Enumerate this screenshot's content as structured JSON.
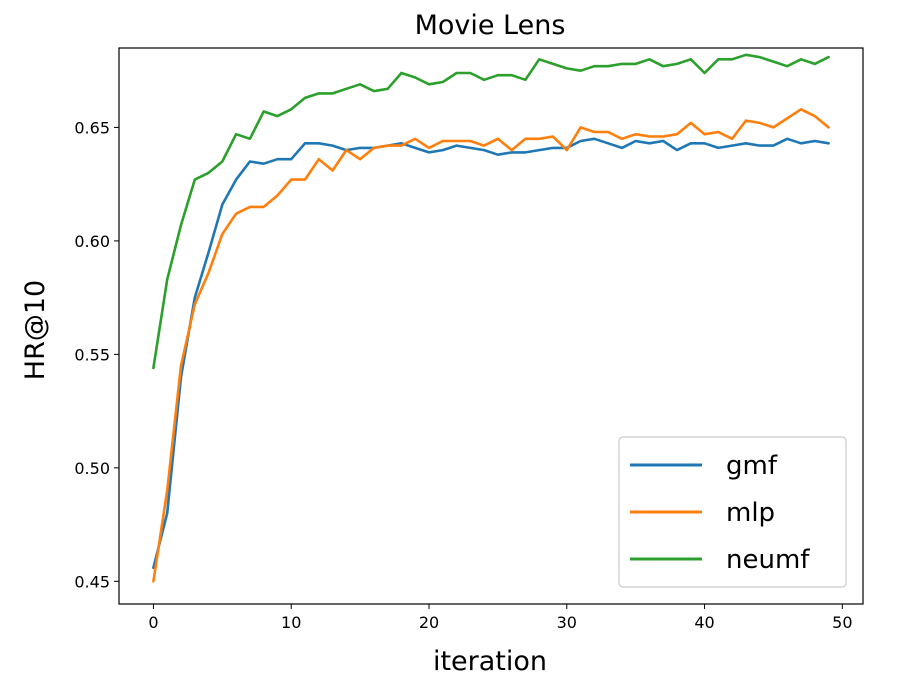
{
  "chart_data": {
    "type": "line",
    "title": "Movie Lens",
    "xlabel": "iteration",
    "ylabel": "HR@10",
    "xlim": [
      -2.5,
      51.5
    ],
    "ylim": [
      0.44,
      0.685
    ],
    "xticks": [
      0,
      10,
      20,
      30,
      40,
      50
    ],
    "yticks": [
      0.45,
      0.5,
      0.55,
      0.6,
      0.65
    ],
    "ytick_labels": [
      "0.45",
      "0.50",
      "0.55",
      "0.60",
      "0.65"
    ],
    "grid": false,
    "legend_position": "bottom-right",
    "x": [
      0,
      1,
      2,
      3,
      4,
      5,
      6,
      7,
      8,
      9,
      10,
      11,
      12,
      13,
      14,
      15,
      16,
      17,
      18,
      19,
      20,
      21,
      22,
      23,
      24,
      25,
      26,
      27,
      28,
      29,
      30,
      31,
      32,
      33,
      34,
      35,
      36,
      37,
      38,
      39,
      40,
      41,
      42,
      43,
      44,
      45,
      46,
      47,
      48,
      49
    ],
    "series": [
      {
        "name": "gmf",
        "color": "#1f77b4",
        "values": [
          0.456,
          0.48,
          0.54,
          0.575,
          0.595,
          0.616,
          0.627,
          0.635,
          0.634,
          0.636,
          0.636,
          0.643,
          0.643,
          0.642,
          0.64,
          0.641,
          0.641,
          0.642,
          0.643,
          0.641,
          0.639,
          0.64,
          0.642,
          0.641,
          0.64,
          0.638,
          0.639,
          0.639,
          0.64,
          0.641,
          0.641,
          0.644,
          0.645,
          0.643,
          0.641,
          0.644,
          0.643,
          0.644,
          0.64,
          0.643,
          0.643,
          0.641,
          0.642,
          0.643,
          0.642,
          0.642,
          0.645,
          0.643,
          0.644,
          0.643
        ]
      },
      {
        "name": "mlp",
        "color": "#ff7f0e",
        "values": [
          0.45,
          0.49,
          0.545,
          0.572,
          0.586,
          0.603,
          0.612,
          0.615,
          0.615,
          0.62,
          0.627,
          0.627,
          0.636,
          0.631,
          0.64,
          0.636,
          0.641,
          0.642,
          0.642,
          0.645,
          0.641,
          0.644,
          0.644,
          0.644,
          0.642,
          0.645,
          0.64,
          0.645,
          0.645,
          0.646,
          0.64,
          0.65,
          0.648,
          0.648,
          0.645,
          0.647,
          0.646,
          0.646,
          0.647,
          0.652,
          0.647,
          0.648,
          0.645,
          0.653,
          0.652,
          0.65,
          0.654,
          0.658,
          0.655,
          0.65
        ]
      },
      {
        "name": "neumf",
        "color": "#2ca02c",
        "values": [
          0.544,
          0.583,
          0.607,
          0.627,
          0.63,
          0.635,
          0.647,
          0.645,
          0.657,
          0.655,
          0.658,
          0.663,
          0.665,
          0.665,
          0.667,
          0.669,
          0.666,
          0.667,
          0.674,
          0.672,
          0.669,
          0.67,
          0.674,
          0.674,
          0.671,
          0.673,
          0.673,
          0.671,
          0.68,
          0.678,
          0.676,
          0.675,
          0.677,
          0.677,
          0.678,
          0.678,
          0.68,
          0.677,
          0.678,
          0.68,
          0.674,
          0.68,
          0.68,
          0.682,
          0.681,
          0.679,
          0.677,
          0.68,
          0.678,
          0.681
        ]
      }
    ]
  }
}
